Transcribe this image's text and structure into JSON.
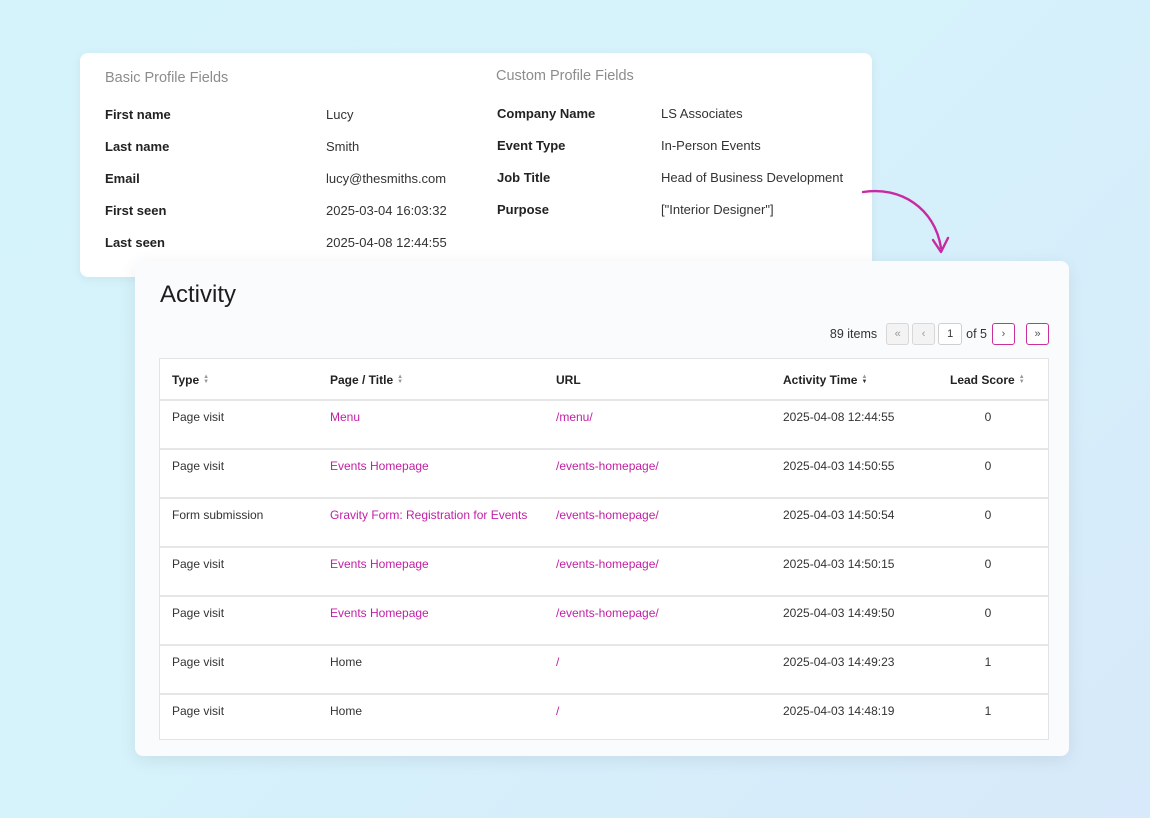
{
  "profile": {
    "basic_title": "Basic Profile Fields",
    "custom_title": "Custom Profile Fields",
    "basic_fields": [
      {
        "label": "First name",
        "value": "Lucy"
      },
      {
        "label": "Last name",
        "value": "Smith"
      },
      {
        "label": "Email",
        "value": "lucy@thesmiths.com"
      },
      {
        "label": "First seen",
        "value": "2025-03-04 16:03:32"
      },
      {
        "label": "Last seen",
        "value": "2025-04-08 12:44:55"
      }
    ],
    "custom_fields": [
      {
        "label": "Company Name",
        "value": "LS Associates"
      },
      {
        "label": "Event Type",
        "value": "In-Person Events"
      },
      {
        "label": "Job Title",
        "value": "Head of Business Development"
      },
      {
        "label": "Purpose",
        "value": "[\"Interior Designer\"]"
      }
    ]
  },
  "activity": {
    "title": "Activity",
    "pagination": {
      "items_count": "89 items",
      "first": "«",
      "prev": "‹",
      "current_page": "1",
      "of_pages": "of 5",
      "next": "›",
      "last": "»"
    },
    "columns": [
      "Type",
      "Page / Title",
      "URL",
      "Activity Time",
      "Lead Score"
    ],
    "rows": [
      {
        "type": "Page visit",
        "title": "Menu",
        "title_link": true,
        "url": "/menu/",
        "time": "2025-04-08 12:44:55",
        "score": "0"
      },
      {
        "type": "Page visit",
        "title": "Events Homepage",
        "title_link": true,
        "url": "/events-homepage/",
        "time": "2025-04-03 14:50:55",
        "score": "0"
      },
      {
        "type": "Form submission",
        "title": "Gravity Form: Registration for Events",
        "title_link": true,
        "url": "/events-homepage/",
        "time": "2025-04-03 14:50:54",
        "score": "0"
      },
      {
        "type": "Page visit",
        "title": "Events Homepage",
        "title_link": true,
        "url": "/events-homepage/",
        "time": "2025-04-03 14:50:15",
        "score": "0"
      },
      {
        "type": "Page visit",
        "title": "Events Homepage",
        "title_link": true,
        "url": "/events-homepage/",
        "time": "2025-04-03 14:49:50",
        "score": "0"
      },
      {
        "type": "Page visit",
        "title": "Home",
        "title_link": false,
        "url": "/",
        "time": "2025-04-03 14:49:23",
        "score": "1"
      },
      {
        "type": "Page visit",
        "title": "Home",
        "title_link": false,
        "url": "/",
        "time": "2025-04-03 14:48:19",
        "score": "1"
      }
    ]
  },
  "colors": {
    "accent": "#c21fa5",
    "arrow": "#c72aa2"
  }
}
